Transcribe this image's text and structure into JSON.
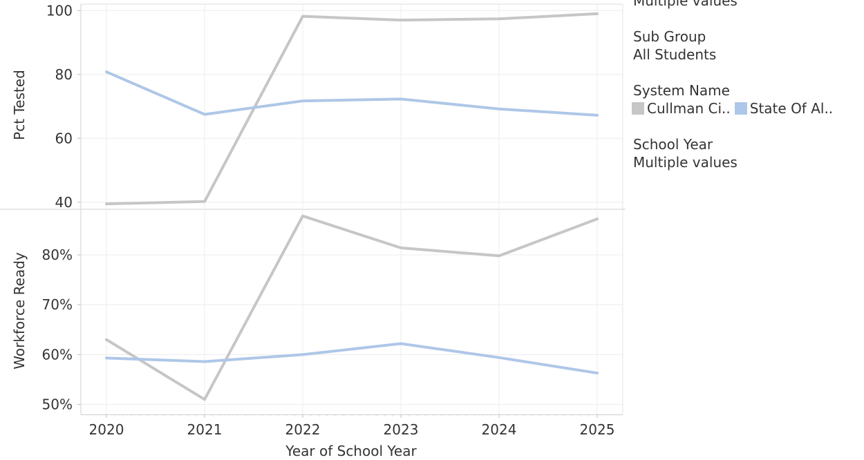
{
  "filters": {
    "top_value": "Multiple values",
    "sub_group_label": "Sub Group",
    "sub_group_value": "All Students",
    "system_name_label": "System Name",
    "school_year_label": "School Year",
    "school_year_value": "Multiple values"
  },
  "legend": {
    "entries": [
      {
        "label": "Cullman Ci..",
        "color": "#c6c6c6"
      },
      {
        "label": "State Of Al..",
        "color": "#aec7e8"
      }
    ]
  },
  "chart_data": [
    {
      "type": "line",
      "xlabel": "",
      "ylabel": "Pct Tested",
      "x": [
        "2020",
        "2021",
        "2022",
        "2023",
        "2024",
        "2025"
      ],
      "ylim": [
        38,
        102
      ],
      "yticks": [
        "40",
        "60",
        "80",
        "100"
      ],
      "ytick_values": [
        40,
        60,
        80,
        100
      ],
      "series": [
        {
          "name": "Cullman Ci..",
          "color": "#c6c6c6",
          "values": [
            39.5,
            40.2,
            98.2,
            97.0,
            97.4,
            99.0
          ]
        },
        {
          "name": "State Of Al..",
          "color": "#aec7e8",
          "values": [
            80.8,
            67.5,
            71.7,
            72.3,
            69.2,
            67.2
          ]
        }
      ]
    },
    {
      "type": "line",
      "xlabel": "Year of School Year",
      "ylabel": "Workforce Ready",
      "x": [
        "2020",
        "2021",
        "2022",
        "2023",
        "2024",
        "2025"
      ],
      "ylim": [
        48,
        89
      ],
      "yticks": [
        "50%",
        "60%",
        "70%",
        "80%"
      ],
      "ytick_values": [
        50,
        60,
        70,
        80
      ],
      "series": [
        {
          "name": "Cullman Ci..",
          "color": "#c6c6c6",
          "values": [
            63.0,
            51.0,
            87.8,
            81.4,
            79.8,
            87.2
          ]
        },
        {
          "name": "State Of Al..",
          "color": "#aec7e8",
          "values": [
            59.3,
            58.6,
            60.0,
            62.2,
            59.4,
            56.3
          ]
        }
      ]
    }
  ]
}
